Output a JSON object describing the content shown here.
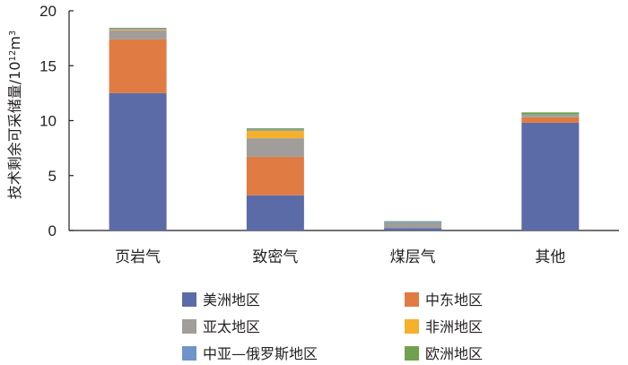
{
  "chart_data": {
    "type": "bar",
    "stacked": true,
    "categories": [
      "页岩气",
      "致密气",
      "煤层气",
      "其他"
    ],
    "ylabel": "技术剩余可采储量/",
    "yunit": {
      "base": "10",
      "exp1": "12",
      "mid": "m",
      "exp2": "3"
    },
    "ylim": [
      0,
      20
    ],
    "yticks": [
      "0",
      "5",
      "10",
      "15",
      "20"
    ],
    "series": [
      {
        "name": "美洲地区",
        "color": "#5b6ba8",
        "values": [
          12.5,
          3.2,
          0.2,
          9.8
        ]
      },
      {
        "name": "中东地区",
        "color": "#e07b43",
        "values": [
          4.9,
          3.5,
          0.0,
          0.5
        ]
      },
      {
        "name": "亚太地区",
        "color": "#a09d9a",
        "values": [
          0.8,
          1.7,
          0.5,
          0.2
        ]
      },
      {
        "name": "非洲地区",
        "color": "#f5b02e",
        "values": [
          0.1,
          0.7,
          0.0,
          0.0
        ]
      },
      {
        "name": "中亚—俄罗斯地区",
        "color": "#6f94c9",
        "values": [
          0.1,
          0.1,
          0.1,
          0.05
        ]
      },
      {
        "name": "欧洲地区",
        "color": "#6fa14e",
        "values": [
          0.05,
          0.1,
          0.05,
          0.2
        ]
      }
    ],
    "grid": false,
    "legend_position": "bottom"
  }
}
